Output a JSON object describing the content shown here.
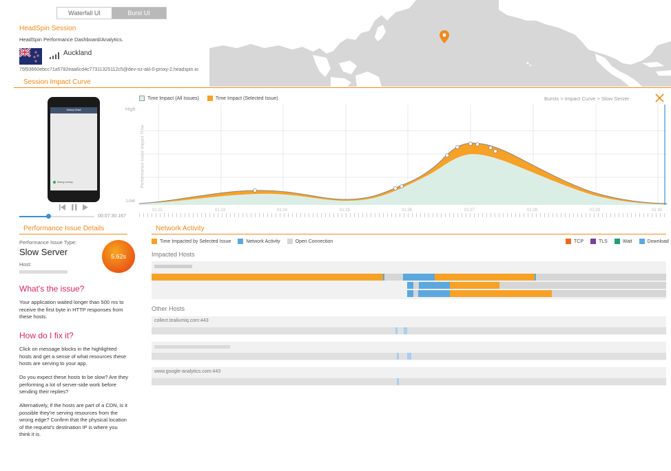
{
  "toggle": {
    "waterfall_label": "Waterfall UI",
    "burst_label": "Burst UI"
  },
  "session": {
    "title": "HeadSpin Session",
    "subtitle": "HeadSpin Performance Dashboard/Analytics.",
    "location": "Auckland",
    "session_id": "75f93660ebcc71a5782eaa6cd4c77311325112c5@dev-nz-akl-0-proxy-2.headspin.io"
  },
  "impact_curve": {
    "title": "Session Impact Curve",
    "legend_all": "Time Impact (All Issues)",
    "legend_selected": "Time Impact (Selected Issue)",
    "breadcrumb": "Bursts > Impact Curve > Slow Server",
    "y_high": "High",
    "y_low": "Low",
    "y_axis_label": "Performance Issue Impact Time",
    "x_ticks": [
      "01:22",
      "01:23",
      "01:24",
      "01:25",
      "01:26",
      "01:27",
      "01:28",
      "01:29",
      "01:30"
    ]
  },
  "phone": {
    "header": "History Detail",
    "footer_text": "Debug overlay"
  },
  "player": {
    "time": "00:07:30.167"
  },
  "issue": {
    "section_title": "Performance Issue Details",
    "type_label": "Performance Issue Type:",
    "type_value": "Slow Server",
    "host_label": "Host:",
    "badge": "5.62s",
    "whats_title": "What's the issue?",
    "whats_text": "Your application waited longer than 500 ms to receive the first byte in HTTP responses from these hosts.",
    "fix_title": "How do I fix it?",
    "fix_text_1": "Click on message blocks in the highlighted hosts and get a sense of what resources these hosts are serving to your app.",
    "fix_text_2": "Do you expect these hosts to be slow? Are they performing a lot of server-side work before sending their replies?",
    "fix_text_3": "Alternatively, if the hosts are part of a CDN, is it possible they're serving resources from the wrong edge? Confirm that the physical location of the request's destination IP is where you think it is."
  },
  "network": {
    "title": "Network Activity",
    "legend_impacted": "Time Impacted by Selected Issue",
    "legend_activity": "Network Activity",
    "legend_open": "Open Connection",
    "legend_tcp": "TCP",
    "legend_tls": "TLS",
    "legend_wait": "Wait",
    "legend_download": "Download",
    "impacted_hosts_title": "Impacted Hosts",
    "other_hosts_title": "Other Hosts",
    "other_hosts": [
      "collect.tealiumiq.com:443",
      "",
      "www.google-analytics.com:443"
    ]
  },
  "colors": {
    "orange": "#f7a127",
    "blue": "#5ba8de",
    "grey": "#d6d6d6",
    "tcp": "#ea6a1f",
    "tls": "#7a3f9d",
    "wait": "#1e9e78",
    "download": "#5ba8de",
    "accent": "#f08a1c",
    "pink": "#d9265f"
  }
}
